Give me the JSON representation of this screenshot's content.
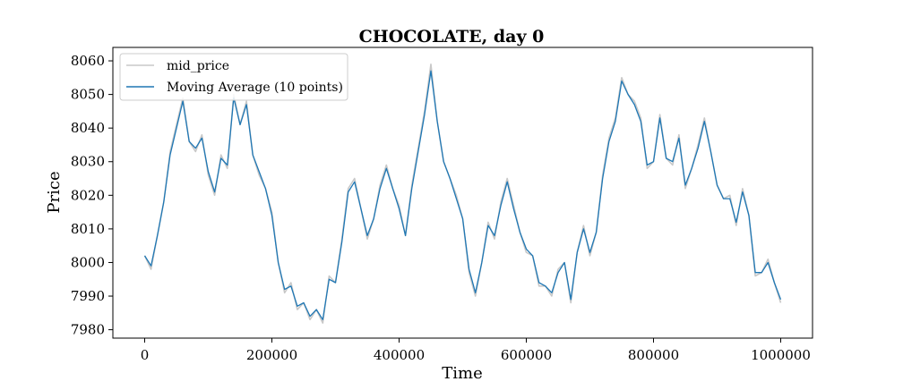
{
  "chart_data": {
    "type": "line",
    "title": "CHOCOLATE, day 0",
    "xlabel": "Time",
    "ylabel": "Price",
    "xlim": [
      -50000,
      1050000
    ],
    "ylim": [
      7977.5,
      8064
    ],
    "x_ticks": [
      0,
      200000,
      400000,
      600000,
      800000,
      1000000
    ],
    "x_tick_labels": [
      "0",
      "200000",
      "400000",
      "600000",
      "800000",
      "1000000"
    ],
    "y_ticks": [
      7980,
      7990,
      8000,
      8010,
      8020,
      8030,
      8040,
      8050,
      8060
    ],
    "y_tick_labels": [
      "7980",
      "7990",
      "8000",
      "8010",
      "8020",
      "8030",
      "8040",
      "8050",
      "8060"
    ],
    "grid": false,
    "legend_position": "top-left",
    "series": [
      {
        "name": "mid_price",
        "color": "#c8c8c8",
        "x": [
          0,
          10000,
          20000,
          30000,
          40000,
          50000,
          60000,
          70000,
          80000,
          90000,
          100000,
          110000,
          120000,
          130000,
          140000,
          150000,
          160000,
          170000,
          180000,
          190000,
          200000,
          210000,
          220000,
          230000,
          240000,
          250000,
          260000,
          270000,
          280000,
          290000,
          300000,
          310000,
          320000,
          330000,
          340000,
          350000,
          360000,
          370000,
          380000,
          390000,
          400000,
          410000,
          420000,
          430000,
          440000,
          450000,
          460000,
          470000,
          480000,
          490000,
          500000,
          510000,
          520000,
          530000,
          540000,
          550000,
          560000,
          570000,
          580000,
          590000,
          600000,
          610000,
          620000,
          630000,
          640000,
          650000,
          660000,
          670000,
          680000,
          690000,
          700000,
          710000,
          720000,
          730000,
          740000,
          750000,
          760000,
          770000,
          780000,
          790000,
          800000,
          810000,
          820000,
          830000,
          840000,
          850000,
          860000,
          870000,
          880000,
          890000,
          900000,
          910000,
          920000,
          930000,
          940000,
          950000,
          960000,
          970000,
          980000,
          990000,
          1000000
        ],
        "values": [
          8002,
          7998,
          8008,
          8018,
          8033,
          8041,
          8049,
          8036,
          8033,
          8038,
          8026,
          8020,
          8032,
          8028,
          8050,
          8041,
          8048,
          8032,
          8026,
          8022,
          8015,
          8000,
          7991,
          7994,
          7986,
          7988,
          7983,
          7986,
          7982,
          7996,
          7994,
          8007,
          8022,
          8025,
          8016,
          8007,
          8013,
          8023,
          8029,
          8022,
          8017,
          8008,
          8023,
          8034,
          8045,
          8059,
          8042,
          8030,
          8025,
          8020,
          8013,
          7997,
          7990,
          8000,
          8012,
          8007,
          8018,
          8025,
          8017,
          8009,
          8003,
          8002,
          7993,
          7993,
          7990,
          7998,
          8000,
          7988,
          8003,
          8011,
          8002,
          8009,
          8026,
          8037,
          8043,
          8055,
          8050,
          8048,
          8043,
          8028,
          8030,
          8044,
          8031,
          8029,
          8038,
          8022,
          8028,
          8035,
          8043,
          8033,
          8023,
          8019,
          8020,
          8011,
          8022,
          8014,
          7996,
          7997,
          8001,
          7994,
          7988
        ]
      },
      {
        "name": "Moving Average (10 points)",
        "color": "#1f77b4",
        "x": [
          0,
          10000,
          20000,
          30000,
          40000,
          50000,
          60000,
          70000,
          80000,
          90000,
          100000,
          110000,
          120000,
          130000,
          140000,
          150000,
          160000,
          170000,
          180000,
          190000,
          200000,
          210000,
          220000,
          230000,
          240000,
          250000,
          260000,
          270000,
          280000,
          290000,
          300000,
          310000,
          320000,
          330000,
          340000,
          350000,
          360000,
          370000,
          380000,
          390000,
          400000,
          410000,
          420000,
          430000,
          440000,
          450000,
          460000,
          470000,
          480000,
          490000,
          500000,
          510000,
          520000,
          530000,
          540000,
          550000,
          560000,
          570000,
          580000,
          590000,
          600000,
          610000,
          620000,
          630000,
          640000,
          650000,
          660000,
          670000,
          680000,
          690000,
          700000,
          710000,
          720000,
          730000,
          740000,
          750000,
          760000,
          770000,
          780000,
          790000,
          800000,
          810000,
          820000,
          830000,
          840000,
          850000,
          860000,
          870000,
          880000,
          890000,
          900000,
          910000,
          920000,
          930000,
          940000,
          950000,
          960000,
          970000,
          980000,
          990000,
          1000000
        ],
        "values": [
          8002,
          7999,
          8008,
          8018,
          8032,
          8040,
          8048,
          8036,
          8034,
          8037,
          8027,
          8021,
          8031,
          8029,
          8049,
          8041,
          8047,
          8032,
          8027,
          8022,
          8014,
          8000,
          7992,
          7993,
          7987,
          7988,
          7984,
          7986,
          7983,
          7995,
          7994,
          8006,
          8021,
          8024,
          8016,
          8008,
          8013,
          8022,
          8028,
          8022,
          8016,
          8008,
          8022,
          8033,
          8044,
          8057,
          8042,
          8030,
          8025,
          8019,
          8013,
          7998,
          7991,
          8000,
          8011,
          8008,
          8017,
          8024,
          8016,
          8009,
          8004,
          8002,
          7994,
          7993,
          7991,
          7997,
          8000,
          7989,
          8003,
          8010,
          8003,
          8009,
          8025,
          8036,
          8042,
          8054,
          8050,
          8047,
          8042,
          8029,
          8030,
          8043,
          8031,
          8030,
          8037,
          8023,
          8028,
          8034,
          8042,
          8033,
          8023,
          8019,
          8019,
          8012,
          8021,
          8014,
          7997,
          7997,
          8000,
          7994,
          7989
        ]
      }
    ]
  }
}
